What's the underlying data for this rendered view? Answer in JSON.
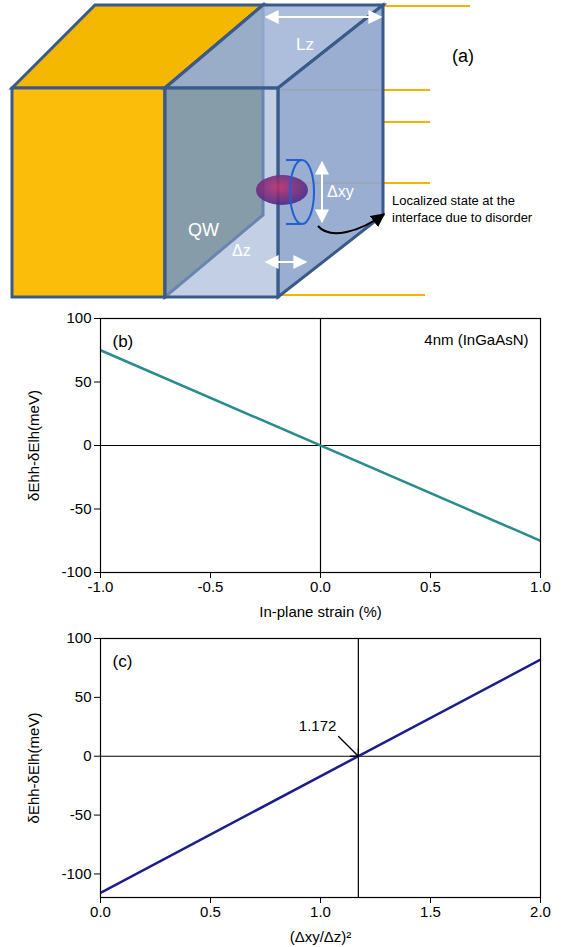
{
  "diagram": {
    "panel": "(a)",
    "labels": {
      "lz": "Lz",
      "qw": "QW",
      "dxy": "Δxy",
      "dz": "Δz"
    },
    "note": "Localized state at the interface due to disorder"
  },
  "chart_data": [
    {
      "type": "line",
      "panel": "(b)",
      "annotations": [
        {
          "text": "4nm (InGaAsN)"
        }
      ],
      "xlabel": "In-plane strain (%)",
      "ylabel": "δEhh-δElh(meV)",
      "x": [
        -1,
        1
      ],
      "values": [
        75,
        -75
      ],
      "color": "#2a8c8c",
      "xlim": [
        -1,
        1
      ],
      "xticks": [
        {
          "value": -1,
          "label": "-1.0"
        },
        {
          "value": -0.5,
          "label": "-0.5"
        },
        {
          "value": 0,
          "label": "0.0"
        },
        {
          "value": 0.5,
          "label": "0.5"
        },
        {
          "value": 1,
          "label": "1.0"
        }
      ],
      "ylim": [
        -100,
        100
      ],
      "yticks": [
        -100,
        -50,
        0,
        50,
        100
      ],
      "hlines": [
        0
      ],
      "vlines": [
        0
      ]
    },
    {
      "type": "line",
      "panel": "(c)",
      "annotations": [
        {
          "text": "1.172",
          "x": 1.172,
          "y": 0
        }
      ],
      "xlabel": "(Δxy/Δz)²",
      "ylabel": "δEhh-δElh(meV)",
      "x": [
        0,
        2
      ],
      "values": [
        -116,
        82
      ],
      "color": "#1c1c8c",
      "xlim": [
        0,
        2
      ],
      "xticks": [
        {
          "value": 0,
          "label": "0.0"
        },
        {
          "value": 0.5,
          "label": "0.5"
        },
        {
          "value": 1,
          "label": "1.0"
        },
        {
          "value": 1.5,
          "label": "1.5"
        },
        {
          "value": 2,
          "label": "2.0"
        }
      ],
      "ylim": [
        -120,
        100
      ],
      "yticks": [
        -100,
        -50,
        0,
        50,
        100
      ],
      "hlines": [
        0
      ],
      "vlines": [
        1.172
      ]
    }
  ]
}
